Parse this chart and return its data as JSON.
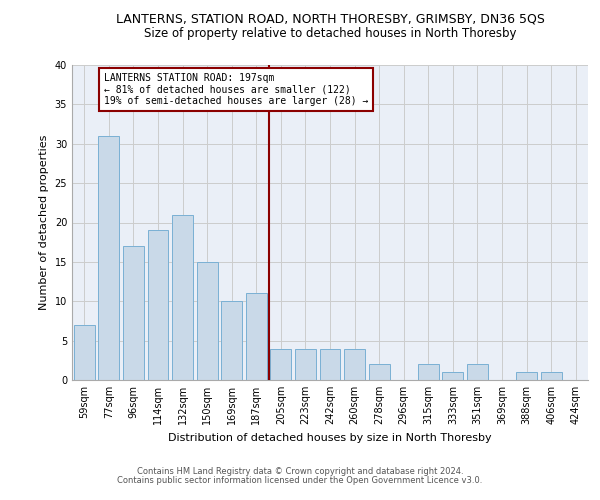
{
  "title": "LANTERNS, STATION ROAD, NORTH THORESBY, GRIMSBY, DN36 5QS",
  "subtitle": "Size of property relative to detached houses in North Thoresby",
  "xlabel": "Distribution of detached houses by size in North Thoresby",
  "ylabel": "Number of detached properties",
  "categories": [
    "59sqm",
    "77sqm",
    "96sqm",
    "114sqm",
    "132sqm",
    "150sqm",
    "169sqm",
    "187sqm",
    "205sqm",
    "223sqm",
    "242sqm",
    "260sqm",
    "278sqm",
    "296sqm",
    "315sqm",
    "333sqm",
    "351sqm",
    "369sqm",
    "388sqm",
    "406sqm",
    "424sqm"
  ],
  "values": [
    7,
    31,
    17,
    19,
    21,
    15,
    10,
    11,
    4,
    4,
    4,
    4,
    2,
    0,
    2,
    1,
    2,
    0,
    1,
    1,
    0
  ],
  "bar_color": "#c9d9e8",
  "bar_edgecolor": "#7ab0d4",
  "vline_x_index": 7.5,
  "vline_color": "#8b0000",
  "annotation_text": "LANTERNS STATION ROAD: 197sqm\n← 81% of detached houses are smaller (122)\n19% of semi-detached houses are larger (28) →",
  "annotation_box_edgecolor": "#8b0000",
  "annotation_box_facecolor": "#ffffff",
  "ylim": [
    0,
    40
  ],
  "yticks": [
    0,
    5,
    10,
    15,
    20,
    25,
    30,
    35,
    40
  ],
  "grid_color": "#cccccc",
  "bg_color": "#eaeff7",
  "footer1": "Contains HM Land Registry data © Crown copyright and database right 2024.",
  "footer2": "Contains public sector information licensed under the Open Government Licence v3.0.",
  "title_fontsize": 9,
  "subtitle_fontsize": 8.5,
  "xlabel_fontsize": 8,
  "ylabel_fontsize": 8,
  "tick_fontsize": 7,
  "annotation_fontsize": 7,
  "footer_fontsize": 6
}
